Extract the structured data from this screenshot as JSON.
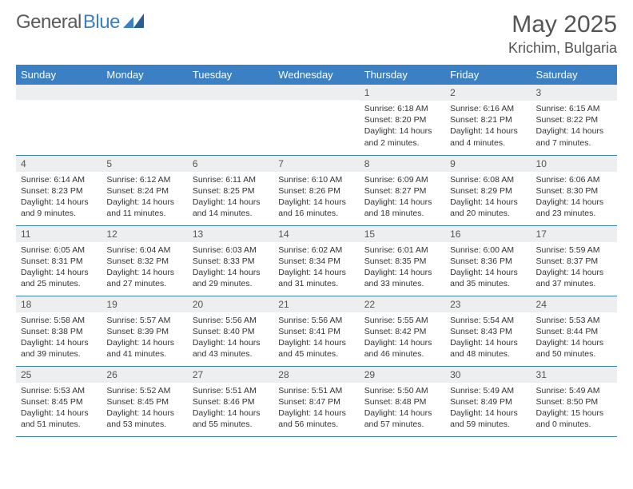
{
  "brand": {
    "part1": "General",
    "part2": "Blue"
  },
  "colors": {
    "accent": "#3b7fc4",
    "grey": "#eceeef"
  },
  "title": {
    "month": "May 2025",
    "location": "Krichim, Bulgaria"
  },
  "weekdays": [
    "Sunday",
    "Monday",
    "Tuesday",
    "Wednesday",
    "Thursday",
    "Friday",
    "Saturday"
  ],
  "weeks": [
    [
      null,
      null,
      null,
      null,
      {
        "n": "1",
        "sr": "6:18 AM",
        "ss": "8:20 PM",
        "dl": "14 hours and 2 minutes."
      },
      {
        "n": "2",
        "sr": "6:16 AM",
        "ss": "8:21 PM",
        "dl": "14 hours and 4 minutes."
      },
      {
        "n": "3",
        "sr": "6:15 AM",
        "ss": "8:22 PM",
        "dl": "14 hours and 7 minutes."
      }
    ],
    [
      {
        "n": "4",
        "sr": "6:14 AM",
        "ss": "8:23 PM",
        "dl": "14 hours and 9 minutes."
      },
      {
        "n": "5",
        "sr": "6:12 AM",
        "ss": "8:24 PM",
        "dl": "14 hours and 11 minutes."
      },
      {
        "n": "6",
        "sr": "6:11 AM",
        "ss": "8:25 PM",
        "dl": "14 hours and 14 minutes."
      },
      {
        "n": "7",
        "sr": "6:10 AM",
        "ss": "8:26 PM",
        "dl": "14 hours and 16 minutes."
      },
      {
        "n": "8",
        "sr": "6:09 AM",
        "ss": "8:27 PM",
        "dl": "14 hours and 18 minutes."
      },
      {
        "n": "9",
        "sr": "6:08 AM",
        "ss": "8:29 PM",
        "dl": "14 hours and 20 minutes."
      },
      {
        "n": "10",
        "sr": "6:06 AM",
        "ss": "8:30 PM",
        "dl": "14 hours and 23 minutes."
      }
    ],
    [
      {
        "n": "11",
        "sr": "6:05 AM",
        "ss": "8:31 PM",
        "dl": "14 hours and 25 minutes."
      },
      {
        "n": "12",
        "sr": "6:04 AM",
        "ss": "8:32 PM",
        "dl": "14 hours and 27 minutes."
      },
      {
        "n": "13",
        "sr": "6:03 AM",
        "ss": "8:33 PM",
        "dl": "14 hours and 29 minutes."
      },
      {
        "n": "14",
        "sr": "6:02 AM",
        "ss": "8:34 PM",
        "dl": "14 hours and 31 minutes."
      },
      {
        "n": "15",
        "sr": "6:01 AM",
        "ss": "8:35 PM",
        "dl": "14 hours and 33 minutes."
      },
      {
        "n": "16",
        "sr": "6:00 AM",
        "ss": "8:36 PM",
        "dl": "14 hours and 35 minutes."
      },
      {
        "n": "17",
        "sr": "5:59 AM",
        "ss": "8:37 PM",
        "dl": "14 hours and 37 minutes."
      }
    ],
    [
      {
        "n": "18",
        "sr": "5:58 AM",
        "ss": "8:38 PM",
        "dl": "14 hours and 39 minutes."
      },
      {
        "n": "19",
        "sr": "5:57 AM",
        "ss": "8:39 PM",
        "dl": "14 hours and 41 minutes."
      },
      {
        "n": "20",
        "sr": "5:56 AM",
        "ss": "8:40 PM",
        "dl": "14 hours and 43 minutes."
      },
      {
        "n": "21",
        "sr": "5:56 AM",
        "ss": "8:41 PM",
        "dl": "14 hours and 45 minutes."
      },
      {
        "n": "22",
        "sr": "5:55 AM",
        "ss": "8:42 PM",
        "dl": "14 hours and 46 minutes."
      },
      {
        "n": "23",
        "sr": "5:54 AM",
        "ss": "8:43 PM",
        "dl": "14 hours and 48 minutes."
      },
      {
        "n": "24",
        "sr": "5:53 AM",
        "ss": "8:44 PM",
        "dl": "14 hours and 50 minutes."
      }
    ],
    [
      {
        "n": "25",
        "sr": "5:53 AM",
        "ss": "8:45 PM",
        "dl": "14 hours and 51 minutes."
      },
      {
        "n": "26",
        "sr": "5:52 AM",
        "ss": "8:45 PM",
        "dl": "14 hours and 53 minutes."
      },
      {
        "n": "27",
        "sr": "5:51 AM",
        "ss": "8:46 PM",
        "dl": "14 hours and 55 minutes."
      },
      {
        "n": "28",
        "sr": "5:51 AM",
        "ss": "8:47 PM",
        "dl": "14 hours and 56 minutes."
      },
      {
        "n": "29",
        "sr": "5:50 AM",
        "ss": "8:48 PM",
        "dl": "14 hours and 57 minutes."
      },
      {
        "n": "30",
        "sr": "5:49 AM",
        "ss": "8:49 PM",
        "dl": "14 hours and 59 minutes."
      },
      {
        "n": "31",
        "sr": "5:49 AM",
        "ss": "8:50 PM",
        "dl": "15 hours and 0 minutes."
      }
    ]
  ],
  "labels": {
    "sunrise": "Sunrise:",
    "sunset": "Sunset:",
    "daylight": "Daylight:"
  }
}
